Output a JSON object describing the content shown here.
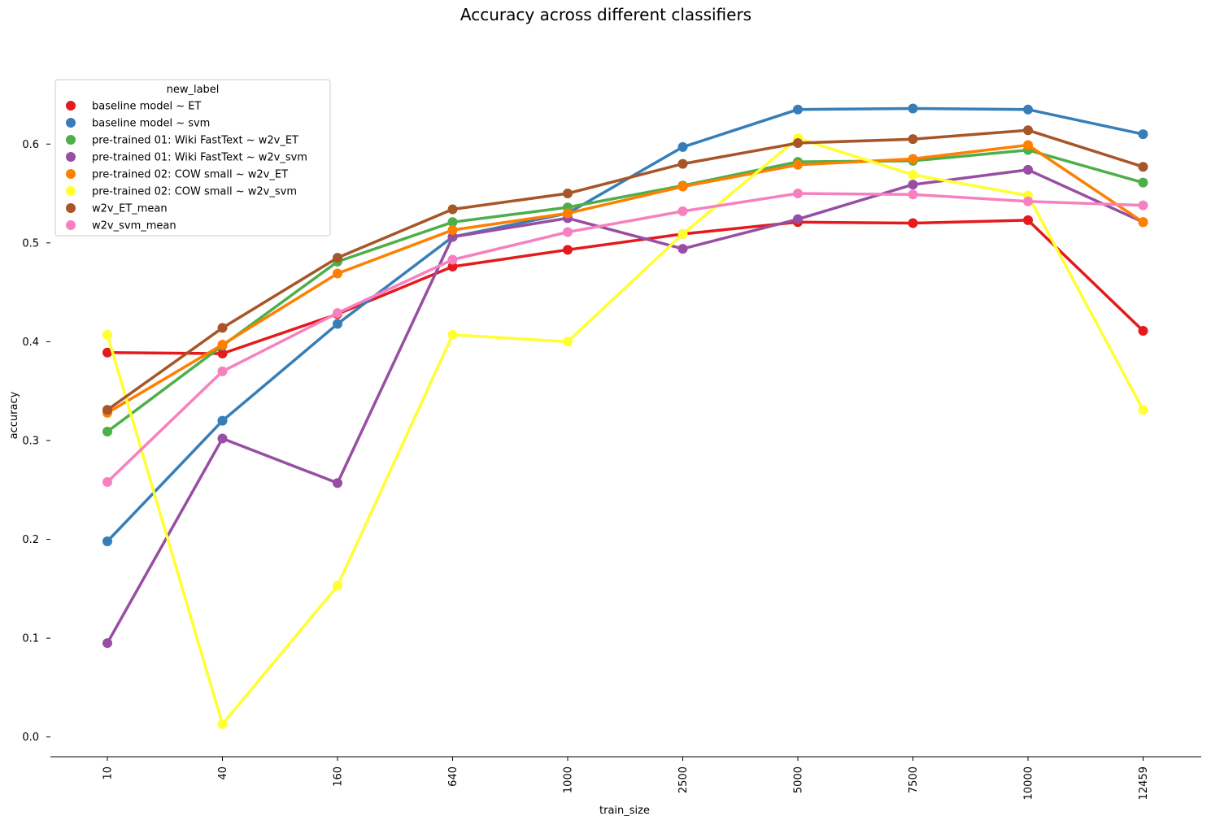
{
  "chart_data": {
    "type": "line",
    "title": "Accuracy across different classifiers",
    "xlabel": "train_size",
    "ylabel": "accuracy",
    "categories": [
      "10",
      "40",
      "160",
      "640",
      "1000",
      "2500",
      "5000",
      "7500",
      "10000",
      "12459"
    ],
    "ylim": [
      -0.02,
      0.68
    ],
    "yticks": [
      0.0,
      0.1,
      0.2,
      0.3,
      0.4,
      0.5,
      0.6
    ],
    "ytick_labels": [
      "0.0",
      "0.1",
      "0.2",
      "0.3",
      "0.4",
      "0.5",
      "0.6"
    ],
    "grid": false,
    "legend": {
      "title": "new_label",
      "position": "upper-left"
    },
    "series": [
      {
        "name": "baseline model ~ ET",
        "color": "#e41a1c",
        "values": [
          0.389,
          0.388,
          0.428,
          0.476,
          0.493,
          0.509,
          0.521,
          0.52,
          0.523,
          0.411
        ]
      },
      {
        "name": "baseline model ~ svm",
        "color": "#377eb8",
        "values": [
          0.198,
          0.32,
          0.418,
          0.506,
          0.53,
          0.597,
          0.635,
          0.636,
          0.635,
          0.61
        ]
      },
      {
        "name": "pre-trained 01: Wiki FastText ~ w2v_ET",
        "color": "#4daf4a",
        "values": [
          0.309,
          0.396,
          0.481,
          0.521,
          0.536,
          0.558,
          0.582,
          0.583,
          0.594,
          0.561
        ]
      },
      {
        "name": "pre-trained 01: Wiki FastText ~ w2v_svm",
        "color": "#984ea3",
        "values": [
          0.095,
          0.302,
          0.257,
          0.506,
          0.525,
          0.494,
          0.524,
          0.559,
          0.574,
          0.521
        ]
      },
      {
        "name": "pre-trained 02: COW small ~ w2v_ET",
        "color": "#ff7f00",
        "values": [
          0.328,
          0.397,
          0.469,
          0.513,
          0.53,
          0.557,
          0.579,
          0.585,
          0.599,
          0.521
        ]
      },
      {
        "name": "pre-trained 02: COW small ~ w2v_svm",
        "color": "#ffff33",
        "values": [
          0.407,
          0.013,
          0.153,
          0.407,
          0.4,
          0.509,
          0.606,
          0.569,
          0.548,
          0.331
        ]
      },
      {
        "name": "w2v_ET_mean",
        "color": "#a65628",
        "values": [
          0.331,
          0.414,
          0.485,
          0.534,
          0.55,
          0.58,
          0.601,
          0.605,
          0.614,
          0.577
        ]
      },
      {
        "name": "w2v_svm_mean",
        "color": "#f781bf",
        "values": [
          0.258,
          0.37,
          0.429,
          0.483,
          0.511,
          0.532,
          0.55,
          0.549,
          0.542,
          0.538
        ]
      }
    ]
  }
}
